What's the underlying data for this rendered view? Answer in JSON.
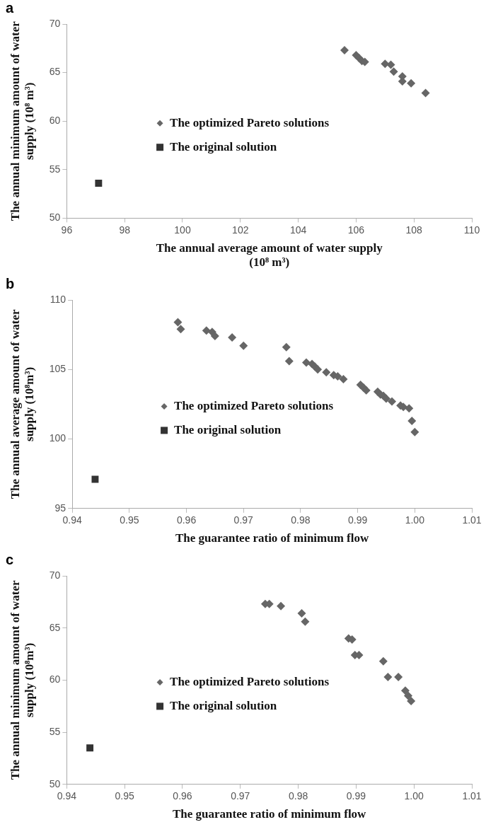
{
  "chart_data": [
    {
      "type": "scatter",
      "title": "a",
      "xlabel": "The annual average amount of water supply (10⁸ m³)",
      "ylabel": "The annual minimum amount of water supply (10⁸ m³)",
      "xlim": [
        96,
        110
      ],
      "xticks": [
        96,
        98,
        100,
        102,
        104,
        106,
        108,
        110
      ],
      "ylim": [
        50,
        70
      ],
      "yticks": [
        50,
        55,
        60,
        65,
        70
      ],
      "grid": false,
      "legend": "left",
      "series": [
        {
          "name": "The optimized Pareto solutions",
          "color": "#666666",
          "marker": "diamond",
          "x": [
            105.6,
            106.0,
            106.1,
            106.2,
            106.3,
            107.0,
            107.2,
            107.3,
            107.6,
            107.6,
            107.9,
            108.4
          ],
          "values": [
            67.3,
            66.8,
            66.5,
            66.2,
            66.1,
            65.9,
            65.8,
            65.1,
            64.6,
            64.1,
            63.9,
            62.9
          ]
        },
        {
          "name": "The original solution",
          "color": "#333333",
          "marker": "square",
          "x": [
            97.1
          ],
          "values": [
            53.6
          ]
        }
      ]
    },
    {
      "type": "scatter",
      "title": "b",
      "xlabel": "The guarantee ratio of minimum flow",
      "ylabel": "The annual average amount of water supply (10⁸m³)",
      "xlim": [
        0.94,
        1.01
      ],
      "xticks": [
        0.94,
        0.95,
        0.96,
        0.97,
        0.98,
        0.99,
        {
          "value": 1,
          "label": "1.00"
        },
        1.01
      ],
      "ylim": [
        95,
        110
      ],
      "yticks": [
        95,
        100,
        105,
        110
      ],
      "grid": false,
      "legend": "left",
      "series": [
        {
          "name": "The optimized Pareto solutions",
          "color": "#666666",
          "marker": "diamond",
          "x": [
            0.9585,
            0.959,
            0.9635,
            0.9645,
            0.965,
            0.968,
            0.97,
            0.9775,
            0.978,
            0.981,
            0.982,
            0.9825,
            0.983,
            0.9845,
            0.9858,
            0.9865,
            0.9875,
            0.9905,
            0.991,
            0.9915,
            0.9935,
            0.994,
            0.9945,
            0.995,
            0.996,
            0.9975,
            0.998,
            0.999,
            0.9995,
            1.0
          ],
          "values": [
            108.4,
            107.9,
            107.8,
            107.7,
            107.4,
            107.3,
            106.7,
            106.6,
            105.6,
            105.5,
            105.4,
            105.2,
            105.0,
            104.8,
            104.6,
            104.5,
            104.3,
            103.9,
            103.7,
            103.5,
            103.4,
            103.2,
            103.1,
            102.9,
            102.7,
            102.4,
            102.3,
            102.2,
            101.3,
            100.5
          ]
        },
        {
          "name": "The original solution",
          "color": "#333333",
          "marker": "square",
          "x": [
            0.944
          ],
          "values": [
            97.1
          ]
        }
      ]
    },
    {
      "type": "scatter",
      "title": "c",
      "xlabel": "The guarantee ratio of minimum flow",
      "ylabel": "The annual minimum amount of water supply (10⁸m³)",
      "xlim": [
        0.94,
        1.01
      ],
      "xticks": [
        0.94,
        0.95,
        0.96,
        0.97,
        0.98,
        0.99,
        {
          "value": 1,
          "label": "1.00"
        },
        1.01
      ],
      "ylim": [
        50,
        70
      ],
      "yticks": [
        50,
        55,
        60,
        65,
        70
      ],
      "grid": false,
      "legend": "left",
      "series": [
        {
          "name": "The optimized Pareto solutions",
          "color": "#666666",
          "marker": "diamond",
          "x": [
            0.9743,
            0.975,
            0.977,
            0.9806,
            0.9812,
            0.9887,
            0.9893,
            0.9898,
            0.9905,
            0.9947,
            0.9955,
            0.9973,
            0.9985,
            0.999,
            0.9995
          ],
          "values": [
            67.3,
            67.3,
            67.1,
            66.4,
            65.6,
            64.0,
            63.9,
            62.4,
            62.4,
            61.8,
            60.3,
            60.3,
            59.0,
            58.5,
            58.0
          ]
        },
        {
          "name": "The original solution",
          "color": "#333333",
          "marker": "square",
          "x": [
            0.944
          ],
          "values": [
            53.5
          ]
        }
      ]
    }
  ]
}
